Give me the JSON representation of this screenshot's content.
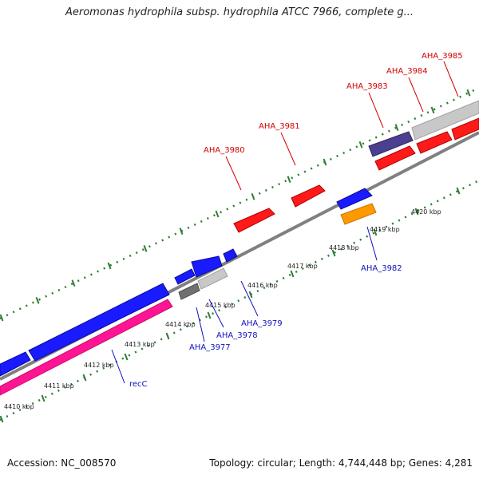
{
  "title": "Aeromonas hydrophila subsp. hydrophila ATCC 7966, complete g...",
  "footer": {
    "accession": "Accession: NC_008570",
    "summary": "Topology: circular; Length: 4,744,448 bp; Genes: 4,281"
  },
  "colors": {
    "backbone": "#808080",
    "scale_ticks": "#2e7d32",
    "forward_label": "#d40000",
    "reverse_label": "#1010c0",
    "gene_red": "#ff1a1a",
    "gene_blue": "#1a1aff",
    "gene_magenta": "#ff1493",
    "gene_orange": "#ff9900",
    "gene_purple": "#4b3f8f",
    "gene_gray": "#c8c8c8",
    "gene_darkgray": "#707070"
  },
  "scale": {
    "unit": "kbp",
    "tick_labels": [
      "4410 kbp",
      "4411 kbp",
      "4412 kbp",
      "4413 kbp",
      "4414 kbp",
      "4415 kbp",
      "4416 kbp",
      "4417 kbp",
      "4418 kbp",
      "4419 kbp",
      "4420 kbp"
    ]
  },
  "gene_labels": {
    "forward": [
      "AHA_3980",
      "AHA_3981",
      "AHA_3983",
      "AHA_3984",
      "AHA_3985"
    ],
    "reverse": [
      "recC",
      "AHA_3977",
      "AHA_3978",
      "AHA_3979",
      "AHA_3982"
    ]
  }
}
